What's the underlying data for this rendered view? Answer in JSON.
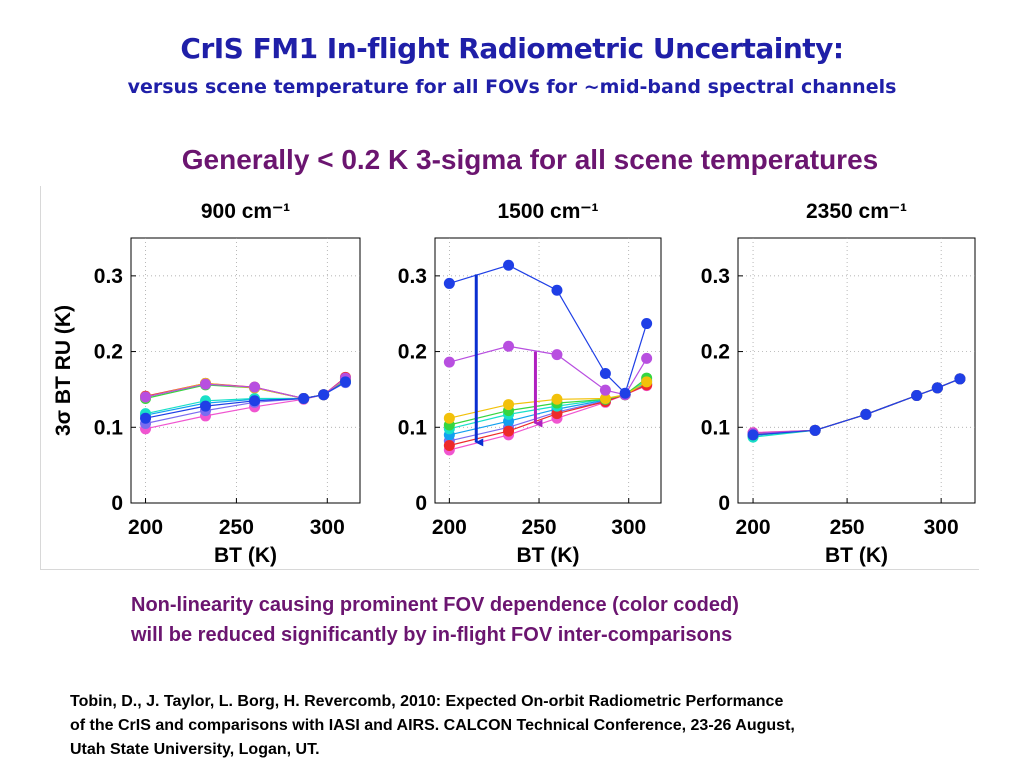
{
  "slide": {
    "title": "CrIS FM1 In-flight Radiometric Uncertainty:",
    "subtitle": "versus scene temperature for all FOVs for ~mid-band spectral channels",
    "headline": "Generally < 0.2 K 3-sigma for all scene temperatures",
    "note_lines": [
      "Non-linearity causing prominent FOV dependence (color coded)",
      "will be reduced significantly by in-flight FOV inter-comparisons"
    ],
    "citation_lines": [
      "Tobin, D., J. Taylor, L. Borg, H. Revercomb, 2010: Expected On-orbit Radiometric Performance",
      "of the CrIS and comparisons with IASI and AIRS. CALCON Technical Conference, 23-26 August,",
      "Utah State University, Logan, UT."
    ]
  },
  "colors": {
    "title": "#1f1fa8",
    "headline": "#6b1570",
    "fov": [
      "#1f3fe6",
      "#b84fe0",
      "#f2c10a",
      "#35d640",
      "#18e0c8",
      "#ee2a2a",
      "#12a0f0",
      "#7a6cf0",
      "#f055d0"
    ],
    "arrow_blue": "#0a2fd0",
    "arrow_magenta": "#b020c0"
  },
  "chart_data": [
    {
      "type": "line",
      "title": "900 cm⁻¹",
      "xlabel": "BT (K)",
      "ylabel": "3σ BT RU (K)",
      "xlim": [
        192,
        318
      ],
      "ylim": [
        0,
        0.35
      ],
      "xticks": [
        "200",
        "250",
        "300"
      ],
      "yticks": [
        "0",
        "0.1",
        "0.2",
        "0.3"
      ],
      "grid": true,
      "x": [
        200,
        233,
        260,
        287,
        298,
        310
      ],
      "series": [
        {
          "values": [
            0.112,
            0.128,
            0.135,
            0.138,
            0.143,
            0.16
          ]
        },
        {
          "values": [
            0.14,
            0.157,
            0.153,
            0.138,
            0.143,
            0.165
          ]
        },
        {
          "values": [
            0.14,
            0.158,
            0.152,
            0.138,
            0.143,
            0.164
          ]
        },
        {
          "values": [
            0.138,
            0.156,
            0.152,
            0.138,
            0.143,
            0.163
          ]
        },
        {
          "values": [
            0.118,
            0.135,
            0.138,
            0.138,
            0.143,
            0.161
          ]
        },
        {
          "values": [
            0.141,
            0.158,
            0.153,
            0.138,
            0.143,
            0.166
          ]
        },
        {
          "values": [
            0.116,
            0.132,
            0.137,
            0.138,
            0.143,
            0.16
          ]
        },
        {
          "values": [
            0.105,
            0.122,
            0.133,
            0.138,
            0.143,
            0.159
          ]
        },
        {
          "values": [
            0.098,
            0.115,
            0.127,
            0.137,
            0.143,
            0.16
          ]
        }
      ]
    },
    {
      "type": "line",
      "title": "1500 cm⁻¹",
      "xlabel": "BT (K)",
      "ylabel": "",
      "xlim": [
        192,
        318
      ],
      "ylim": [
        0,
        0.35
      ],
      "xticks": [
        "200",
        "250",
        "300"
      ],
      "yticks": [
        "0",
        "0.1",
        "0.2",
        "0.3"
      ],
      "grid": true,
      "x": [
        200,
        233,
        260,
        287,
        298,
        310
      ],
      "series": [
        {
          "values": [
            0.29,
            0.314,
            0.281,
            0.171,
            0.145,
            0.237
          ]
        },
        {
          "values": [
            0.186,
            0.207,
            0.196,
            0.149,
            0.143,
            0.191
          ]
        },
        {
          "values": [
            0.112,
            0.13,
            0.137,
            0.138,
            0.143,
            0.16
          ]
        },
        {
          "values": [
            0.103,
            0.122,
            0.132,
            0.137,
            0.143,
            0.165
          ]
        },
        {
          "values": [
            0.098,
            0.117,
            0.128,
            0.137,
            0.143,
            0.162
          ]
        },
        {
          "values": [
            0.076,
            0.095,
            0.118,
            0.134,
            0.143,
            0.156
          ]
        },
        {
          "values": [
            0.09,
            0.108,
            0.124,
            0.136,
            0.143,
            0.158
          ]
        },
        {
          "values": [
            0.082,
            0.1,
            0.12,
            0.135,
            0.143,
            0.157
          ]
        },
        {
          "values": [
            0.07,
            0.09,
            0.112,
            0.133,
            0.143,
            0.155
          ]
        }
      ],
      "annotations": [
        {
          "type": "arrow",
          "x": 215,
          "y_from": 0.302,
          "y_to": 0.08,
          "color": "#0a2fd0"
        },
        {
          "type": "arrow",
          "x": 248,
          "y_from": 0.2,
          "y_to": 0.105,
          "color": "#b020c0"
        }
      ]
    },
    {
      "type": "line",
      "title": "2350 cm⁻¹",
      "xlabel": "BT (K)",
      "ylabel": "",
      "xlim": [
        192,
        318
      ],
      "ylim": [
        0,
        0.35
      ],
      "xticks": [
        "200",
        "250",
        "300"
      ],
      "yticks": [
        "0",
        "0.1",
        "0.2",
        "0.3"
      ],
      "grid": true,
      "x": [
        200,
        233,
        260,
        287,
        298,
        310
      ],
      "series": [
        {
          "values": [
            0.09,
            0.096,
            0.117,
            0.142,
            0.152,
            0.164
          ]
        },
        {
          "values": [
            0.092,
            0.096,
            0.117,
            0.142,
            0.152,
            0.164
          ]
        },
        {
          "values": [
            0.091,
            0.096,
            0.117,
            0.142,
            0.152,
            0.164
          ]
        },
        {
          "values": [
            0.09,
            0.096,
            0.117,
            0.142,
            0.152,
            0.164
          ]
        },
        {
          "values": [
            0.087,
            0.096,
            0.117,
            0.142,
            0.152,
            0.164
          ]
        },
        {
          "values": [
            0.092,
            0.096,
            0.117,
            0.142,
            0.152,
            0.164
          ]
        },
        {
          "values": [
            0.089,
            0.096,
            0.117,
            0.142,
            0.152,
            0.164
          ]
        },
        {
          "values": [
            0.091,
            0.096,
            0.117,
            0.142,
            0.152,
            0.164
          ]
        },
        {
          "values": [
            0.093,
            0.096,
            0.117,
            0.142,
            0.152,
            0.164
          ]
        }
      ]
    }
  ]
}
